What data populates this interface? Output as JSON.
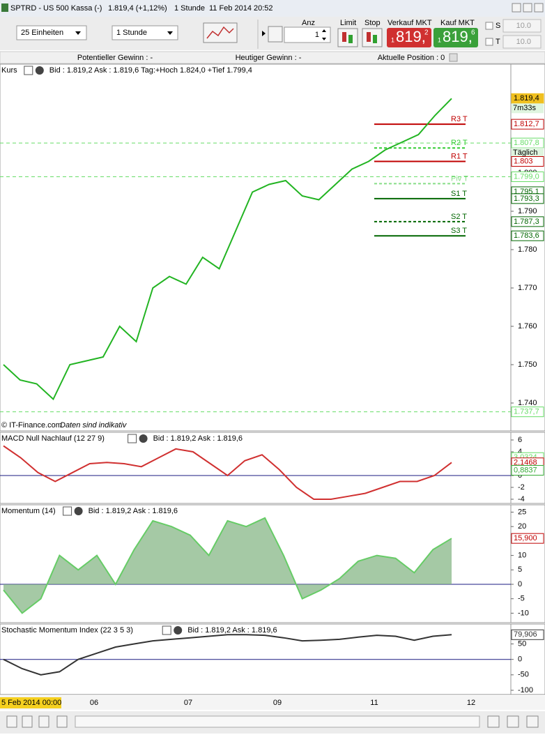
{
  "window": {
    "title": "SPTRD - US 500 Kassa (-)",
    "price": "1.819,4 (+1,12%)",
    "interval": "1 Stunde",
    "datetime": "11 Feb 2014 20:52"
  },
  "toolbar": {
    "units": "25 Einheiten",
    "interval": "1 Stunde",
    "anz_label": "Anz",
    "anz_value": "1",
    "limit": "Limit",
    "stop": "Stop",
    "sell_label": "Verkauf MKT",
    "sell_prefix": "1",
    "sell_main": "819,",
    "sell_suffix": "2",
    "buy_label": "Kauf MKT",
    "buy_prefix": "1",
    "buy_main": "819,",
    "buy_suffix": "6",
    "s_label": "S",
    "s_value": "10.0",
    "t_label": "T",
    "t_value": "10.0"
  },
  "info_bar": {
    "potential": "Potentieller Gewinn : -",
    "today": "Heutiger Gewinn : -",
    "position": "Aktuelle Position : 0"
  },
  "chart_data": [
    {
      "type": "line",
      "title": "Kurs",
      "quote": "Bid : 1.819,2 Ask : 1.819,6 Tag:+Hoch 1.824,0 +Tief 1.799,4",
      "footer": "© IT-Finance.com",
      "footer_note": "Daten sind indikativ",
      "ylim": [
        1735,
        1825
      ],
      "yticks": [
        {
          "value": 1740,
          "label": "1.740"
        },
        {
          "value": 1750,
          "label": "1.750"
        },
        {
          "value": 1760,
          "label": "1.760"
        },
        {
          "value": 1770,
          "label": "1.770"
        },
        {
          "value": 1780,
          "label": "1.780"
        },
        {
          "value": 1790,
          "label": "1.790"
        },
        {
          "value": 1800,
          "label": "1.800"
        }
      ],
      "series": [
        {
          "color": "#22b422",
          "values": [
            1750,
            1746,
            1745,
            1741,
            1750,
            1751,
            1752,
            1760,
            1756,
            1770,
            1773,
            1771,
            1778,
            1775,
            1785,
            1795,
            1797,
            1798,
            1794,
            1793,
            1797,
            1801,
            1803,
            1806,
            1808,
            1810,
            1815,
            1819.4
          ]
        }
      ],
      "pivots": [
        {
          "label": "R3 T",
          "value": 1812.7,
          "color": "#c00000"
        },
        {
          "label": "R2 T",
          "value": 1806.5,
          "color": "#33cc33"
        },
        {
          "label": "R1 T",
          "value": 1803,
          "color": "#c00000"
        },
        {
          "label": "Piv T",
          "value": 1797.2,
          "color": "#88dd88"
        },
        {
          "label": "S1 T",
          "value": 1793.3,
          "color": "#006600"
        },
        {
          "label": "S2 T",
          "value": 1787.3,
          "color": "#006600"
        },
        {
          "label": "S3 T",
          "value": 1783.6,
          "color": "#006600"
        }
      ],
      "level_labels": [
        {
          "value": 1819.4,
          "label": "1.819,4",
          "color": "#f0c020",
          "note": "7m33s"
        },
        {
          "value": 1812.7,
          "label": "1.812,7",
          "color": "#c00000"
        },
        {
          "value": 1807.8,
          "label": "1.807,8",
          "color": "#66dd66",
          "note": "Täglich"
        },
        {
          "value": 1803,
          "label": "1.803",
          "color": "#c00000"
        },
        {
          "value": 1799,
          "label": "1.799,0",
          "color": "#66dd66"
        },
        {
          "value": 1795.1,
          "label": "1.795,1",
          "color": "#006600"
        },
        {
          "value": 1793.3,
          "label": "1.793,3",
          "color": "#006600"
        },
        {
          "value": 1787.3,
          "label": "1.787,3",
          "color": "#006600"
        },
        {
          "value": 1783.6,
          "label": "1.783,6",
          "color": "#006600"
        },
        {
          "value": 1737.7,
          "label": "1.737,7",
          "color": "#66dd66"
        }
      ]
    },
    {
      "type": "line",
      "title": "MACD Null Nachlauf (12 27 9)",
      "quote": "Bid : 1.819,2 Ask : 1.819,6",
      "ylim": [
        -5,
        7
      ],
      "yticks": [
        6,
        4,
        2,
        0,
        -2,
        -4
      ],
      "series": [
        {
          "color": "#d03030",
          "values": [
            5,
            3,
            0.5,
            -1,
            0.5,
            2,
            2.2,
            2,
            1.5,
            3,
            4.5,
            4,
            2,
            0,
            2.5,
            3.5,
            1,
            -2,
            -4,
            -4,
            -3.5,
            -3,
            -2,
            -1,
            -1,
            0,
            2.2
          ]
        }
      ],
      "level_labels": [
        {
          "value": 3.0324,
          "label": "3,0324",
          "color": "#66dd66"
        },
        {
          "value": 2.1468,
          "label": "2,1468",
          "color": "#c00000"
        },
        {
          "value": 0.8837,
          "label": "0,8837",
          "color": "#33aa33"
        }
      ]
    },
    {
      "type": "area",
      "title": "Momentum (14)",
      "quote": "Bid : 1.819,2 Ask : 1.819,6",
      "ylim": [
        -12,
        27
      ],
      "yticks": [
        25,
        20,
        15,
        10,
        5,
        0,
        -5,
        -10
      ],
      "series": [
        {
          "color": "#66cc66",
          "values": [
            -2,
            -10,
            -5,
            10,
            5,
            10,
            0,
            12,
            22,
            20,
            17,
            10,
            22,
            20,
            23,
            10,
            -5,
            -2,
            2,
            8,
            10,
            9,
            4,
            12,
            15.9
          ]
        }
      ],
      "level_labels": [
        {
          "value": 15.9,
          "label": "15,900",
          "color": "#c00000"
        }
      ]
    },
    {
      "type": "line",
      "title": "Stochastic Momentum Index (22 3 5 3)",
      "quote": "Bid : 1.819,2 Ask : 1.819,6",
      "ylim": [
        -105,
        100
      ],
      "yticks": [
        50,
        0,
        -50,
        -100
      ],
      "series": [
        {
          "color": "#333333",
          "values": [
            0,
            -30,
            -50,
            -40,
            0,
            20,
            40,
            50,
            60,
            65,
            70,
            75,
            80,
            80,
            78,
            70,
            60,
            62,
            65,
            72,
            78,
            75,
            62,
            75,
            79.906
          ]
        }
      ],
      "level_labels": [
        {
          "value": 79.906,
          "label": "79,906",
          "color": "#333333"
        }
      ]
    }
  ],
  "time_labels": [
    "5 Feb 2014 00:00",
    "06",
    "07",
    "09",
    "11",
    "12"
  ]
}
